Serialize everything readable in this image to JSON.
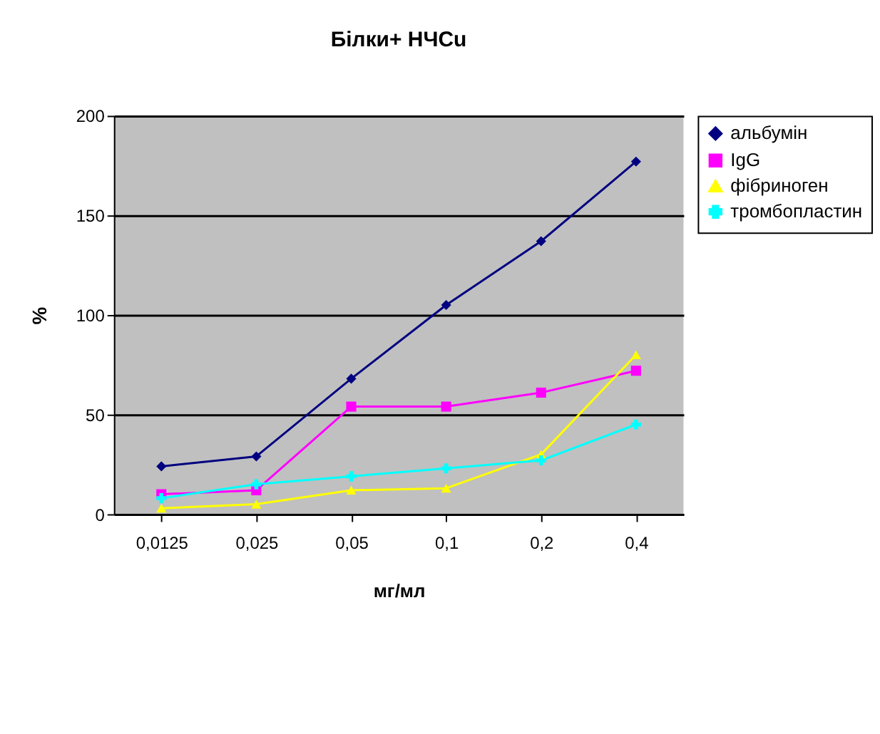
{
  "chart_data": {
    "type": "line",
    "title": "Білки+ НЧСu",
    "xlabel": "мг/мл",
    "ylabel": "%",
    "categories": [
      "0,0125",
      "0,025",
      "0,05",
      "0,1",
      "0,2",
      "0,4"
    ],
    "series": [
      {
        "name": "альбумін",
        "color": "#000080",
        "marker": "diamond",
        "values": [
          24,
          29,
          68,
          105,
          137,
          177
        ]
      },
      {
        "name": "IgG",
        "color": "#ff00ff",
        "marker": "square",
        "values": [
          10,
          12,
          54,
          54,
          61,
          72
        ]
      },
      {
        "name": "фібриноген",
        "color": "#ffff00",
        "marker": "triangle",
        "values": [
          3,
          5,
          12,
          13,
          30,
          80
        ]
      },
      {
        "name": "тромбопластин",
        "color": "#00ffff",
        "marker": "cross",
        "values": [
          8,
          15,
          19,
          23,
          27,
          45
        ]
      }
    ],
    "ylim": [
      0,
      200
    ],
    "yticks": [
      0,
      50,
      100,
      150,
      200
    ],
    "grid": "y",
    "legend": "right"
  }
}
